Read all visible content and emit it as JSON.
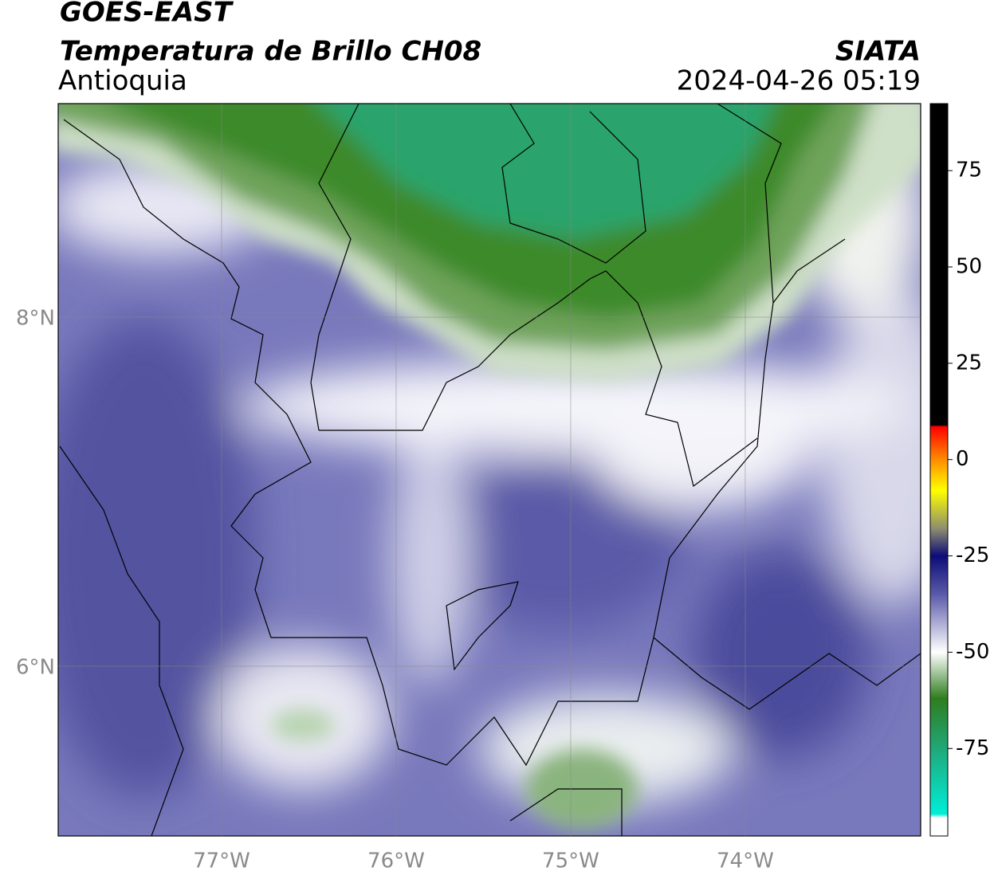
{
  "header": {
    "title": "GOES-EAST",
    "subtitle": "Temperatura de Brillo CH08",
    "region": "Antioquia",
    "source": "SIATA",
    "datetime": "2024-04-26 05:19"
  },
  "map": {
    "type": "map",
    "lonlim": [
      -77.936,
      -72.995
    ],
    "latlim": [
      5.027,
      9.224
    ],
    "xticks": [
      {
        "value": -77,
        "label": "77°W"
      },
      {
        "value": -76,
        "label": "76°W"
      },
      {
        "value": -75,
        "label": "75°W"
      },
      {
        "value": -74,
        "label": "74°W"
      }
    ],
    "yticks": [
      {
        "value": 8,
        "label": "8°N"
      },
      {
        "value": 6,
        "label": "6°N"
      }
    ],
    "grid": true,
    "colorbar": {
      "ylim": [
        -97.7,
        92.4
      ],
      "yticks": [
        75,
        50,
        25,
        0,
        -25,
        -50,
        -75
      ],
      "colormap": [
        {
          "value": 92.4,
          "color": "#000000"
        },
        {
          "value": 9,
          "color": "#000000"
        },
        {
          "value": 8.5,
          "color": "#ff0000"
        },
        {
          "value": 0,
          "color": "#ff8c00"
        },
        {
          "value": -8,
          "color": "#ffff00"
        },
        {
          "value": -18,
          "color": "#8c8c70"
        },
        {
          "value": -25,
          "color": "#0c0c78"
        },
        {
          "value": -35,
          "color": "#5a5aaa"
        },
        {
          "value": -50,
          "color": "#ffffff"
        },
        {
          "value": -62,
          "color": "#2e7d1e"
        },
        {
          "value": -75,
          "color": "#20a878"
        },
        {
          "value": -92,
          "color": "#00eed8"
        },
        {
          "value": -93,
          "color": "#ffffff"
        },
        {
          "value": -97.7,
          "color": "#ffffff"
        }
      ]
    }
  }
}
